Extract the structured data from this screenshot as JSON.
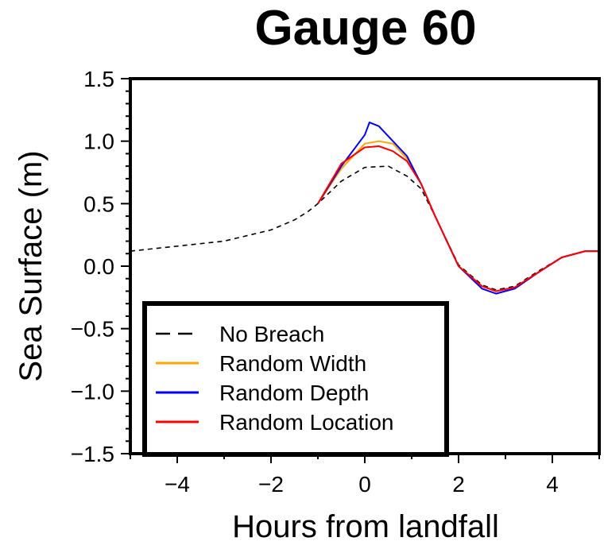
{
  "chart_data": {
    "type": "line",
    "title": "Gauge 60",
    "xlabel": "Hours from landfall",
    "ylabel": "Sea Surface (m)",
    "xlim": [
      -5,
      5
    ],
    "ylim": [
      -1.5,
      1.5
    ],
    "xticks": [
      -4,
      -2,
      0,
      2,
      4
    ],
    "xtick_labels": [
      "−4",
      "−2",
      "0",
      "2",
      "4"
    ],
    "yticks": [
      -1.5,
      -1.0,
      -0.5,
      0.0,
      0.5,
      1.0,
      1.5
    ],
    "ytick_labels": [
      "−1.5",
      "−1.0",
      "−0.5",
      "0.0",
      "0.5",
      "1.0",
      "1.5"
    ],
    "legend_position": "bottom-left",
    "series": [
      {
        "name": "No Breach",
        "color": "#000000",
        "dash": true,
        "x": [
          -5,
          -4,
          -3,
          -2,
          -1.5,
          -1.2,
          -1.0,
          -0.5,
          0,
          0.5,
          0.9,
          1.2,
          1.5,
          2.0,
          2.5,
          2.8,
          3.2,
          3.7,
          4.2,
          4.7,
          5.0
        ],
        "y": [
          0.12,
          0.16,
          0.2,
          0.29,
          0.37,
          0.44,
          0.5,
          0.68,
          0.79,
          0.8,
          0.72,
          0.62,
          0.4,
          0.01,
          -0.15,
          -0.19,
          -0.16,
          -0.04,
          0.07,
          0.12,
          0.12
        ]
      },
      {
        "name": "Random Width",
        "color": "#ffa500",
        "x": [
          -1.0,
          -0.5,
          0,
          0.3,
          0.6,
          0.9,
          1.2,
          1.5,
          2.0,
          2.5,
          2.8,
          3.2,
          3.7,
          4.2,
          4.7,
          5.0
        ],
        "y": [
          0.5,
          0.78,
          0.98,
          1.0,
          0.98,
          0.86,
          0.66,
          0.4,
          0.0,
          -0.16,
          -0.2,
          -0.17,
          -0.05,
          0.07,
          0.12,
          0.12
        ]
      },
      {
        "name": "Random Depth",
        "color": "#0000ff",
        "x": [
          -1.0,
          -0.5,
          0,
          0.1,
          0.3,
          0.6,
          0.9,
          1.2,
          1.5,
          2.0,
          2.5,
          2.8,
          3.2,
          3.7,
          4.2,
          4.7,
          5.0
        ],
        "y": [
          0.5,
          0.8,
          1.05,
          1.15,
          1.12,
          1.0,
          0.88,
          0.66,
          0.4,
          0.0,
          -0.18,
          -0.22,
          -0.18,
          -0.05,
          0.07,
          0.12,
          0.12
        ]
      },
      {
        "name": "Random Location",
        "color": "#ff0000",
        "x": [
          -1.0,
          -0.5,
          0,
          0.3,
          0.6,
          0.9,
          1.2,
          1.5,
          2.0,
          2.5,
          2.8,
          3.2,
          3.7,
          4.2,
          4.7,
          5.0
        ],
        "y": [
          0.5,
          0.82,
          0.95,
          0.96,
          0.92,
          0.84,
          0.66,
          0.4,
          0.0,
          -0.16,
          -0.2,
          -0.17,
          -0.05,
          0.07,
          0.12,
          0.12
        ]
      }
    ]
  }
}
